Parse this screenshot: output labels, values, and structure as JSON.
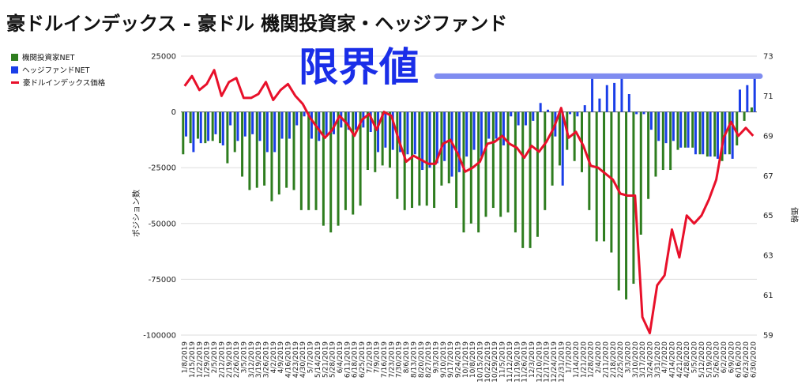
{
  "title": "豪ドルインデックス - 豪ドル 機関投資家・ヘッジファンド",
  "annotation": "限界値",
  "colors": {
    "inst": "#2e7d1f",
    "hedge": "#1a3ee8",
    "price": "#e8102a",
    "limit_line": "#7f8cf0",
    "stamp": "#1a2ee8"
  },
  "chart_data": {
    "type": "bar",
    "title": "豪ドルインデックス - 豪ドル 機関投資家・ヘッジファンド",
    "xlabel": "",
    "ylabel": "ポジション数",
    "y2label": "価格",
    "ylim": [
      -100000,
      25000
    ],
    "y2lim": [
      59,
      73
    ],
    "yticks": [
      25000,
      0,
      -25000,
      -50000,
      -75000,
      -100000
    ],
    "y2ticks": [
      73,
      71,
      69,
      67,
      65,
      63,
      61,
      59
    ],
    "grid": "horizontal",
    "legend_position": "top-left",
    "categories": [
      "1/8/2019",
      "1/15/2019",
      "1/22/2019",
      "1/29/2019",
      "2/5/2019",
      "2/12/2019",
      "2/19/2019",
      "2/26/2019",
      "3/5/2019",
      "3/12/2019",
      "3/19/2019",
      "3/26/2019",
      "4/2/2019",
      "4/9/2019",
      "4/16/2019",
      "4/23/2019",
      "4/30/2019",
      "5/7/2019",
      "5/14/2019",
      "5/21/2019",
      "5/28/2019",
      "6/4/2019",
      "6/11/2019",
      "6/18/2019",
      "6/25/2019",
      "7/2/2019",
      "7/9/2019",
      "7/16/2019",
      "7/23/2019",
      "7/30/2019",
      "8/6/2019",
      "8/13/2019",
      "8/20/2019",
      "8/27/2019",
      "9/3/2019",
      "9/10/2019",
      "9/17/2019",
      "9/24/2019",
      "10/1/2019",
      "10/8/2019",
      "10/15/2019",
      "10/22/2019",
      "10/29/2019",
      "11/5/2019",
      "11/12/2019",
      "11/19/2019",
      "11/26/2019",
      "12/3/2019",
      "12/10/2019",
      "12/17/2019",
      "12/24/2019",
      "12/31/2019",
      "1/7/2020",
      "1/14/2020",
      "1/21/2020",
      "1/28/2020",
      "2/4/2020",
      "2/11/2020",
      "2/18/2020",
      "2/25/2020",
      "3/3/2020",
      "3/10/2020",
      "3/17/2020",
      "3/24/2020",
      "3/31/2020",
      "4/7/2020",
      "4/14/2020",
      "4/21/2020",
      "4/28/2020",
      "5/5/2020",
      "5/12/2020",
      "5/19/2020",
      "5/26/2020",
      "6/2/2020",
      "6/9/2020",
      "6/16/2020",
      "6/23/2020",
      "6/30/2020"
    ],
    "xtick_labels": [
      "1/8/2019",
      "1/15/2019",
      "1/22/2019",
      "1/29/2019",
      "2/5/2019",
      "2/12/2019",
      "2/19/2019",
      "2/26/2019",
      "3/5/2019",
      "3/12/2019",
      "3/19/2019",
      "3/26/2019",
      "4/2/2019",
      "4/9/2019",
      "4/16/2019",
      "4/23/2019",
      "4/30/2019",
      "5/7/2019",
      "5/14/2019",
      "5/21/2019",
      "5/28/2019",
      "6/4/2019",
      "6/11/2019",
      "6/18/2019",
      "6/25/2019",
      "7/2/2019",
      "7/9/2019",
      "7/16/2019",
      "7/23/2019",
      "7/30/2019",
      "8/6/2019",
      "8/13/2019",
      "8/20/2019",
      "8/27/2019",
      "9/3/2019",
      "9/10/2019",
      "9/17/2019",
      "9/24/2019",
      "10/1/2019",
      "10/8/2019",
      "10/15/2019",
      "10/22/2019",
      "10/29/2019",
      "11/5/2019",
      "11/12/2019",
      "11/19/2019",
      "11/26/2019",
      "12/3/2019",
      "12/10/2019",
      "12/17/2019",
      "12/24/2019",
      "12/31/2019",
      "1/7/2020",
      "1/14/2020",
      "1/21/2020",
      "1/28/2020",
      "2/4/2020",
      "2/11/2020",
      "2/18/2020",
      "2/25/2020",
      "3/3/2020",
      "3/10/2020",
      "3/17/2020",
      "3/24/2020",
      "3/31/2020",
      "4/7/2020",
      "4/14/2020",
      "4/21/2020",
      "4/28/2020",
      "5/5/2020",
      "5/12/2020",
      "5/19/2020",
      "5/26/2020",
      "6/2/2020",
      "6/9/2020",
      "6/16/2020",
      "6/23/2020",
      "6/30/2020"
    ],
    "limit_line_value": 16000,
    "series": [
      {
        "name": "機関投資家NET",
        "axis": "left",
        "kind": "bar",
        "values": [
          -19000,
          -14000,
          -12000,
          -14000,
          -13000,
          -14000,
          -23000,
          -18000,
          -29000,
          -35000,
          -34000,
          -33000,
          -40000,
          -37000,
          -34000,
          -35000,
          -44000,
          -44000,
          -44000,
          -51000,
          -54000,
          -51000,
          -44000,
          -46000,
          -42000,
          -26000,
          -27000,
          -24000,
          -25000,
          -39000,
          -44000,
          -43000,
          -42000,
          -42000,
          -43000,
          -33000,
          -32000,
          -43000,
          -54000,
          -50000,
          -54000,
          -47000,
          -43000,
          -47000,
          -45000,
          -54000,
          -61000,
          -61000,
          -56000,
          -44000,
          -33000,
          -24000,
          -17000,
          -22000,
          -27000,
          -44000,
          -58000,
          -58000,
          -63000,
          -80000,
          -84000,
          -77000,
          -55000,
          -39000,
          -29000,
          -26000,
          -26000,
          -17000,
          -16000,
          -16000,
          -19000,
          -20000,
          -20000,
          -22000,
          -19000,
          -15000,
          -4000,
          2000
        ]
      },
      {
        "name": "ヘッジファンドNET",
        "axis": "left",
        "kind": "bar",
        "values": [
          -11000,
          -18000,
          -14000,
          -13000,
          -10000,
          -15000,
          -6000,
          -13000,
          -11000,
          -10000,
          -13000,
          -18000,
          -18000,
          -12000,
          -12000,
          -6000,
          -2000,
          -12000,
          -13000,
          -11000,
          -10000,
          -7000,
          -8000,
          -8000,
          -7000,
          -9000,
          -18000,
          -16000,
          -17000,
          -18000,
          -19000,
          -19000,
          -26000,
          -25000,
          -23000,
          -22000,
          -29000,
          -27000,
          -20000,
          -17000,
          -20000,
          -12000,
          -12000,
          -15000,
          -2000,
          -6000,
          -6000,
          -4000,
          4000,
          1000,
          -11000,
          -33000,
          -1000,
          -2000,
          3000,
          15000,
          6000,
          12000,
          13000,
          17000,
          8000,
          -1000,
          -1000,
          -8000,
          -13000,
          -14000,
          -13000,
          -16000,
          -16000,
          -19000,
          -19000,
          -20000,
          -21000,
          -19000,
          -21000,
          10000,
          12000,
          16000
        ]
      },
      {
        "name": "豪ドルインデックス価格",
        "axis": "right",
        "kind": "line",
        "values": [
          71.5,
          72.0,
          71.3,
          71.6,
          72.3,
          71.0,
          71.7,
          71.9,
          70.9,
          70.9,
          71.1,
          71.7,
          70.8,
          71.3,
          71.6,
          71.0,
          70.6,
          69.9,
          69.4,
          68.9,
          69.3,
          70.0,
          69.6,
          69.0,
          69.8,
          70.1,
          69.3,
          70.2,
          70.0,
          68.8,
          67.7,
          68.0,
          67.8,
          67.6,
          67.6,
          68.6,
          68.8,
          68.1,
          67.2,
          67.4,
          67.7,
          68.6,
          68.7,
          69.0,
          68.6,
          68.4,
          67.9,
          68.5,
          68.2,
          68.7,
          69.4,
          70.4,
          68.9,
          69.2,
          68.5,
          67.5,
          67.4,
          67.1,
          66.8,
          66.1,
          66.0,
          66.0,
          59.9,
          59.1,
          61.5,
          62.0,
          64.3,
          62.9,
          65.0,
          64.6,
          65.0,
          65.8,
          66.8,
          68.9,
          69.7,
          69.0,
          69.4,
          69.0
        ]
      }
    ]
  }
}
